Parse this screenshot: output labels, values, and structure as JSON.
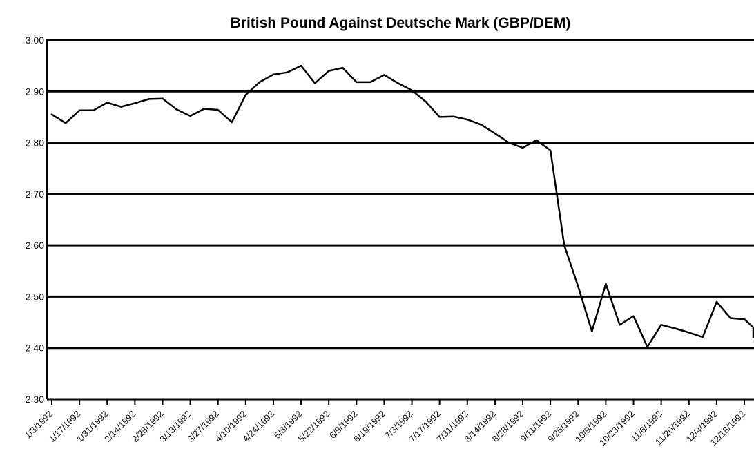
{
  "chart_data": {
    "type": "line",
    "title": "British Pound Against Deutsche Mark (GBP/DEM)",
    "xlabel": "",
    "ylabel": "",
    "ylim": [
      2.3,
      3.0
    ],
    "yticks": [
      "3.00",
      "2.90",
      "2.80",
      "2.70",
      "2.60",
      "2.50",
      "2.40",
      "2.30"
    ],
    "y_tick_values": [
      3.0,
      2.9,
      2.8,
      2.7,
      2.6,
      2.5,
      2.4,
      2.3
    ],
    "grid": true,
    "legend": "none",
    "line_color": "#000000",
    "x_tick_labels": [
      "1/3/1992",
      "1/17/1992",
      "1/31/1992",
      "2/14/1992",
      "2/28/1992",
      "3/13/1992",
      "3/27/1992",
      "4/10/1992",
      "4/24/1992",
      "5/8/1992",
      "5/22/1992",
      "6/5/1992",
      "6/19/1992",
      "7/3/1992",
      "7/17/1992",
      "7/31/1992",
      "8/14/1992",
      "8/28/1992",
      "9/11/1992",
      "9/25/1992",
      "10/9/1992",
      "10/23/1992",
      "11/6/1992",
      "11/20/1992",
      "12/4/1992",
      "12/18/1992"
    ],
    "series": [
      {
        "x": [
          "1/3/1992",
          "1/10/1992",
          "1/17/1992",
          "1/24/1992",
          "1/31/1992",
          "2/7/1992",
          "2/14/1992",
          "2/21/1992",
          "2/28/1992",
          "3/6/1992",
          "3/13/1992",
          "3/20/1992",
          "3/27/1992",
          "4/3/1992",
          "4/10/1992",
          "4/17/1992",
          "4/24/1992",
          "5/1/1992",
          "5/8/1992",
          "5/15/1992",
          "5/22/1992",
          "5/29/1992",
          "6/5/1992",
          "6/12/1992",
          "6/19/1992",
          "6/26/1992",
          "7/3/1992",
          "7/10/1992",
          "7/17/1992",
          "7/24/1992",
          "7/31/1992",
          "8/7/1992",
          "8/14/1992",
          "8/21/1992",
          "8/28/1992",
          "9/4/1992",
          "9/11/1992",
          "9/18/1992",
          "9/25/1992",
          "10/2/1992",
          "10/9/1992",
          "10/16/1992",
          "10/23/1992",
          "10/30/1992",
          "11/6/1992",
          "11/13/1992",
          "11/20/1992",
          "11/27/1992",
          "12/4/1992",
          "12/11/1992",
          "12/18/1992",
          "12/25/1992",
          "12/31/1992"
        ],
        "values": [
          2.855,
          2.838,
          2.863,
          2.863,
          2.878,
          2.87,
          2.877,
          2.885,
          2.886,
          2.865,
          2.852,
          2.866,
          2.864,
          2.84,
          2.893,
          2.918,
          2.933,
          2.937,
          2.95,
          2.916,
          2.94,
          2.946,
          2.918,
          2.918,
          2.932,
          2.916,
          2.902,
          2.88,
          2.85,
          2.851,
          2.845,
          2.835,
          2.818,
          2.8,
          2.79,
          2.805,
          2.785,
          2.6,
          2.52,
          2.432,
          2.525,
          2.445,
          2.462,
          2.402,
          2.445,
          2.438,
          2.43,
          2.421,
          2.49,
          2.458,
          2.456,
          2.44,
          2.42
        ]
      }
    ]
  }
}
